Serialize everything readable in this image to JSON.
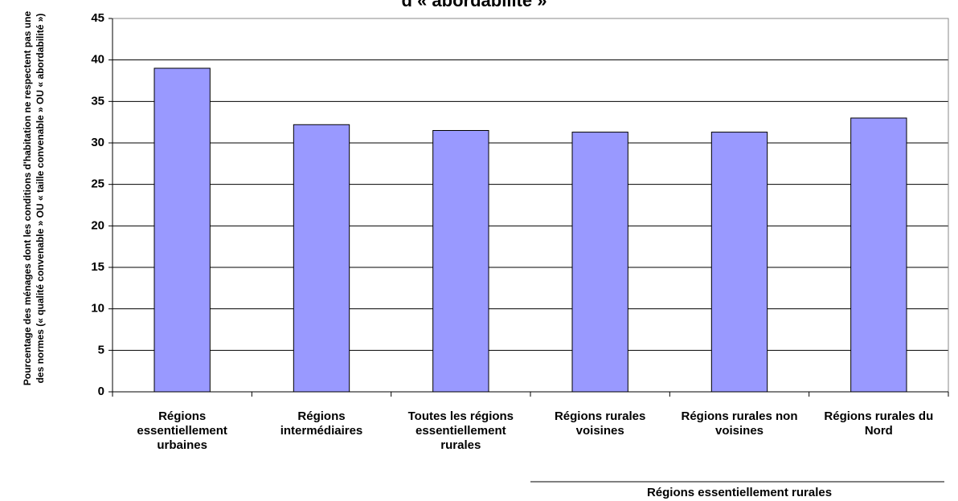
{
  "chart_data": {
    "type": "bar",
    "title": "d « abordabilité »",
    "y_label": "Pourcentage des ménages dont les conditions d'habitation ne respectent pas une des normes (« qualité convenable » OU « taille convenable » OU « abordabilité »)",
    "categories": [
      "Régions essentiellement urbaines",
      "Régions intermédiaires",
      "Toutes les régions essentiellement rurales",
      "Régions rurales voisines",
      "Régions rurales non voisines",
      "Régions rurales du Nord"
    ],
    "values": [
      39,
      32.2,
      31.5,
      31.3,
      31.3,
      33
    ],
    "group_label": "Régions essentiellement rurales",
    "color": "#9999ff",
    "ylim": [
      0,
      45
    ],
    "yticks": [
      0,
      5,
      10,
      15,
      20,
      25,
      30,
      35,
      40,
      45
    ],
    "grid": true
  }
}
